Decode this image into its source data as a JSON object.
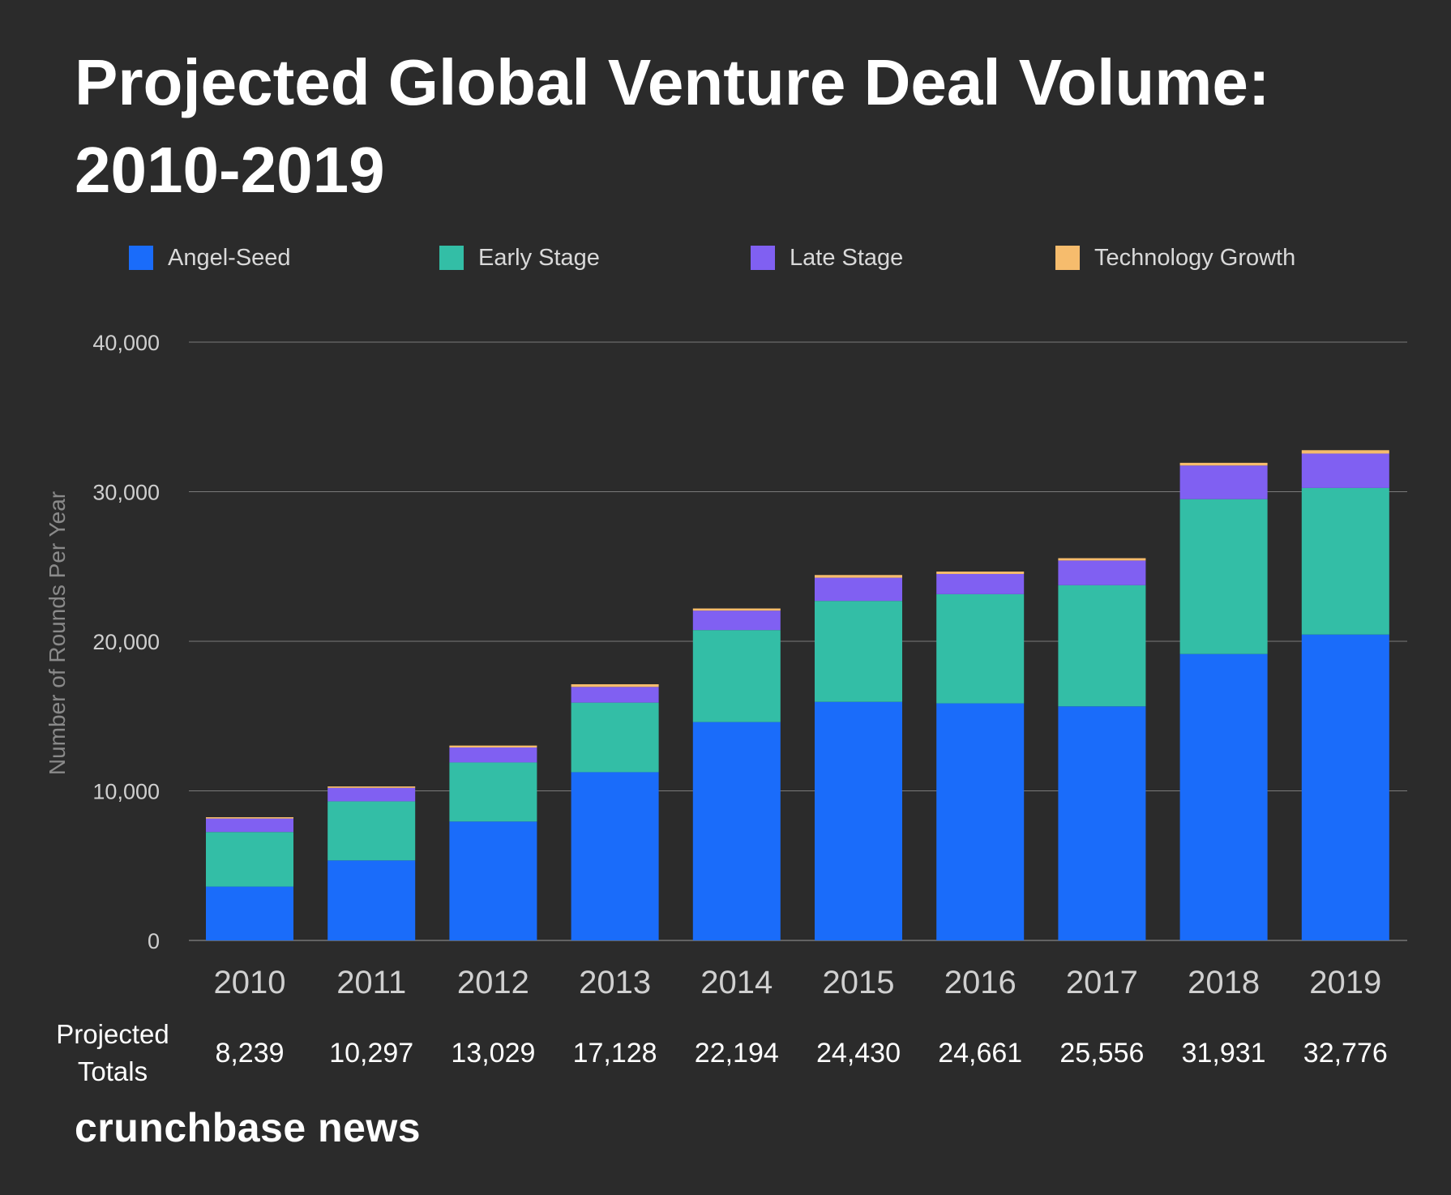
{
  "chart_data": {
    "type": "bar",
    "stacked": true,
    "title": "Projected Global Venture Deal Volume: 2010-2019",
    "ylabel": "Number of Rounds Per Year",
    "xlabel": "",
    "ylim": [
      0,
      40000
    ],
    "yticks": [
      0,
      10000,
      20000,
      30000,
      40000
    ],
    "ytick_labels": [
      "0",
      "10,000",
      "20,000",
      "30,000",
      "40,000"
    ],
    "grid": true,
    "legend_position": "top",
    "categories": [
      "2010",
      "2011",
      "2012",
      "2013",
      "2014",
      "2015",
      "2016",
      "2017",
      "2018",
      "2019"
    ],
    "series": [
      {
        "name": "Angel-Seed",
        "color": "#1a6cfa",
        "values": [
          3600,
          5350,
          7950,
          11250,
          14600,
          15950,
          15850,
          15650,
          19150,
          20450
        ]
      },
      {
        "name": "Early Stage",
        "color": "#33bea6",
        "values": [
          3650,
          3950,
          3950,
          4650,
          6150,
          6750,
          7300,
          8100,
          10350,
          9800
        ]
      },
      {
        "name": "Late Stage",
        "color": "#8060f2",
        "values": [
          900,
          900,
          1000,
          1050,
          1300,
          1550,
          1350,
          1650,
          2250,
          2300
        ]
      },
      {
        "name": "Technology Growth",
        "color": "#f6bc6d",
        "values": [
          89,
          97,
          129,
          178,
          144,
          180,
          161,
          156,
          181,
          226
        ]
      }
    ],
    "totals_label": "Projected Totals",
    "totals": [
      "8,239",
      "10,297",
      "13,029",
      "17,128",
      "22,194",
      "24,430",
      "24,661",
      "25,556",
      "31,931",
      "32,776"
    ]
  },
  "brand": "crunchbase news"
}
